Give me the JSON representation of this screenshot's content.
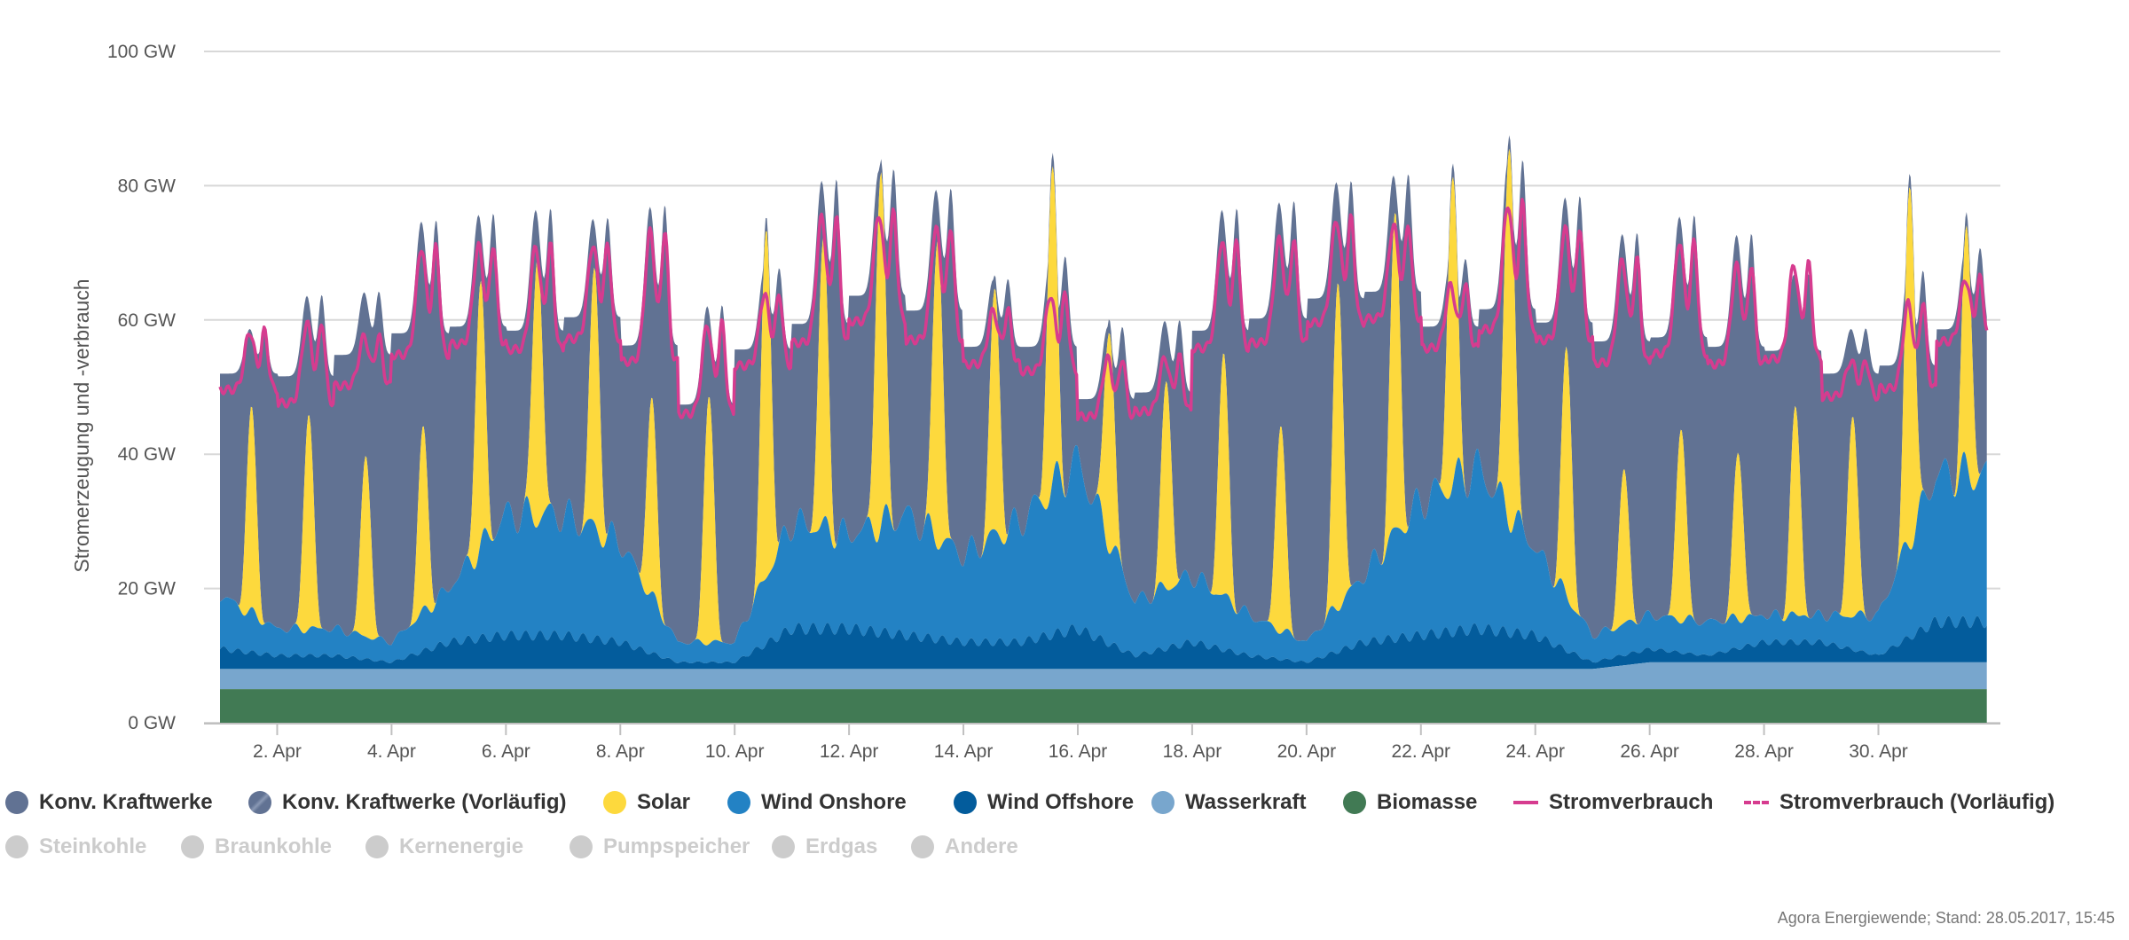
{
  "chart_data": {
    "type": "area",
    "xlabel": "",
    "ylabel": "Stromerzeugung und -verbrauch",
    "ylim": [
      0,
      100
    ],
    "xlim_days": [
      1,
      31.9
    ],
    "y_ticks": [
      "0 GW",
      "20 GW",
      "40 GW",
      "60 GW",
      "80 GW",
      "100 GW"
    ],
    "y_tick_values": [
      0,
      20,
      40,
      60,
      80,
      100
    ],
    "x_ticks": [
      "2. Apr",
      "4. Apr",
      "6. Apr",
      "8. Apr",
      "10. Apr",
      "12. Apr",
      "14. Apr",
      "16. Apr",
      "18. Apr",
      "20. Apr",
      "22. Apr",
      "24. Apr",
      "26. Apr",
      "28. Apr",
      "30. Apr"
    ],
    "x_tick_days": [
      2,
      4,
      6,
      8,
      10,
      12,
      14,
      16,
      18,
      20,
      22,
      24,
      26,
      28,
      30
    ],
    "grid": true,
    "legend_placement": "bottom",
    "stacking": "stacked areas: Biomasse, Wasserkraft, Wind Offshore, Wind Onshore, Solar, Konv. Kraftwerke; Stromverbrauch as line",
    "daily": {
      "days": [
        1,
        2,
        3,
        4,
        5,
        6,
        7,
        8,
        9,
        10,
        11,
        12,
        13,
        14,
        15,
        16,
        17,
        18,
        19,
        20,
        21,
        22,
        23,
        24,
        25,
        26,
        27,
        28,
        29,
        30,
        31
      ],
      "total_peak": [
        60,
        66,
        66,
        78,
        79,
        80,
        78,
        81,
        65,
        70,
        85,
        86,
        83,
        68,
        72,
        61,
        62,
        80,
        81,
        84,
        85,
        71,
        88,
        82,
        76,
        79,
        76,
        69,
        60,
        70,
        73
      ],
      "total_min": [
        50,
        48,
        52,
        53,
        54,
        53,
        56,
        50,
        43,
        52,
        53,
        58,
        56,
        53,
        52,
        45,
        46,
        53,
        55,
        58,
        59,
        56,
        55,
        54,
        52,
        52,
        51,
        52,
        50,
        49,
        55
      ],
      "verbrauch_peak": [
        60,
        62,
        59,
        74,
        74,
        74,
        74,
        77,
        62,
        66,
        79,
        79,
        77,
        63,
        66,
        56,
        56,
        75,
        75,
        78,
        77,
        67,
        81,
        77,
        72,
        75,
        71,
        71,
        55,
        65,
        68
      ],
      "verbrauch_min": [
        47,
        44,
        48,
        50,
        52,
        51,
        53,
        48,
        42,
        50,
        51,
        55,
        52,
        51,
        49,
        43,
        44,
        51,
        52,
        55,
        56,
        53,
        53,
        52,
        49,
        50,
        49,
        50,
        47,
        46,
        54
      ],
      "solar_peak": [
        30,
        32,
        27,
        27,
        39,
        40,
        38,
        29,
        37,
        52,
        42,
        53,
        46,
        36,
        47,
        33,
        31,
        36,
        31,
        49,
        47,
        46,
        57,
        37,
        23,
        29,
        25,
        31,
        30,
        54,
        35
      ],
      "wind_onshore": [
        8,
        4,
        4,
        3,
        8,
        18,
        18,
        15,
        3,
        3,
        16,
        14,
        18,
        13,
        18,
        25,
        8,
        10,
        6,
        3,
        10,
        20,
        24,
        13,
        4,
        5,
        5,
        4,
        4,
        6,
        22
      ],
      "wind_offshore": [
        3,
        2,
        2,
        1,
        4,
        5,
        5,
        4,
        1,
        1,
        6,
        6,
        5,
        4,
        4,
        6,
        2,
        4,
        2,
        1,
        4,
        5,
        6,
        5,
        1,
        2,
        1,
        3,
        3,
        1,
        6
      ],
      "wasserkraft": [
        3,
        3,
        3,
        3,
        3,
        3,
        3,
        3,
        3,
        3,
        3,
        3,
        3,
        3,
        3,
        3,
        3,
        3,
        3,
        3,
        3,
        3,
        3,
        3,
        3,
        4,
        4,
        4,
        4,
        4,
        4
      ],
      "biomasse": [
        5,
        5,
        5,
        5,
        5,
        5,
        5,
        5,
        5,
        5,
        5,
        5,
        5,
        5,
        5,
        5,
        5,
        5,
        5,
        5,
        5,
        5,
        5,
        5,
        5,
        5,
        5,
        5,
        5,
        5,
        5
      ]
    },
    "series": [
      {
        "name": "Konv. Kraftwerke",
        "color": "#617293",
        "kind": "area",
        "visible": true
      },
      {
        "name": "Konv. Kraftwerke (Vorläufig)",
        "color": "#617293",
        "kind": "area",
        "visible": true
      },
      {
        "name": "Solar",
        "color": "#fdd93d",
        "kind": "area",
        "visible": true
      },
      {
        "name": "Wind Onshore",
        "color": "#2382c4",
        "kind": "area",
        "visible": true
      },
      {
        "name": "Wind Offshore",
        "color": "#035c9c",
        "kind": "area",
        "visible": true
      },
      {
        "name": "Wasserkraft",
        "color": "#78a6cd",
        "kind": "area",
        "visible": true
      },
      {
        "name": "Biomasse",
        "color": "#417a54",
        "kind": "area",
        "visible": true
      },
      {
        "name": "Stromverbrauch",
        "color": "#d63c8f",
        "kind": "line",
        "visible": true
      },
      {
        "name": "Stromverbrauch (Vorläufig)",
        "color": "#d63c8f",
        "kind": "dash",
        "visible": true
      },
      {
        "name": "Steinkohle",
        "color": "#cccccc",
        "kind": "area",
        "visible": false
      },
      {
        "name": "Braunkohle",
        "color": "#cccccc",
        "kind": "area",
        "visible": false
      },
      {
        "name": "Kernenergie",
        "color": "#cccccc",
        "kind": "area",
        "visible": false
      },
      {
        "name": "Pumpspeicher",
        "color": "#cccccc",
        "kind": "area",
        "visible": false
      },
      {
        "name": "Erdgas",
        "color": "#cccccc",
        "kind": "area",
        "visible": false
      },
      {
        "name": "Andere",
        "color": "#cccccc",
        "kind": "area",
        "visible": false
      }
    ]
  },
  "credits": "Agora Energiewende; Stand: 28.05.2017, 15:45"
}
